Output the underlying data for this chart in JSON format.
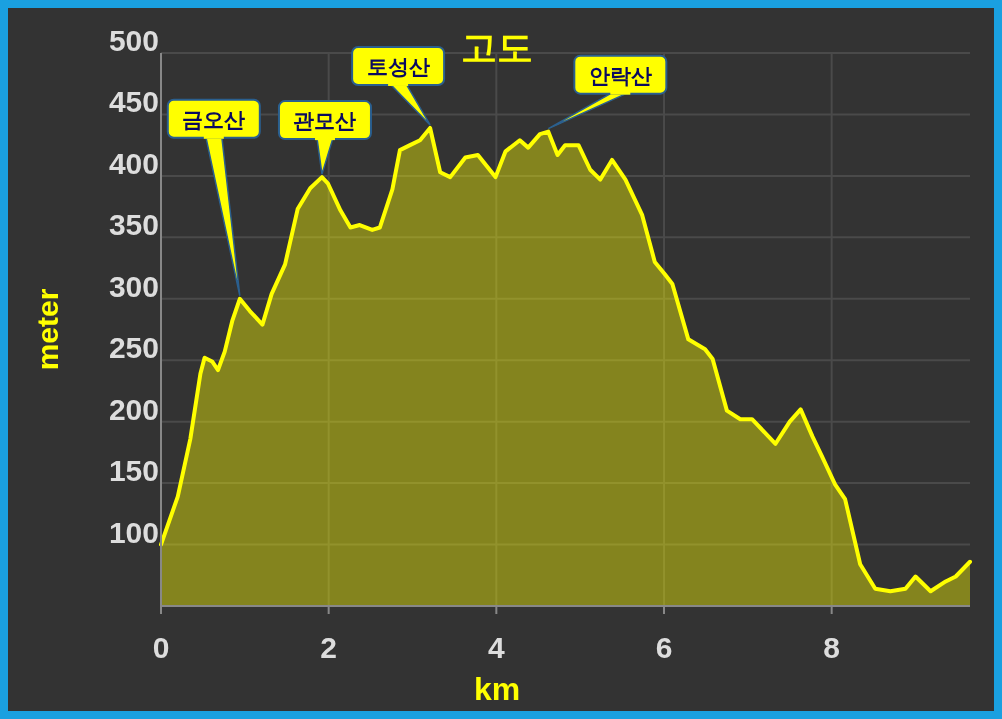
{
  "chart_data": {
    "type": "area",
    "title": "고도",
    "xlabel": "km",
    "ylabel": "meter",
    "xlim": [
      0,
      9.65
    ],
    "xticks": [
      0,
      2,
      4,
      6,
      8
    ],
    "ylim": [
      50,
      500
    ],
    "yticks": [
      100,
      150,
      200,
      250,
      300,
      350,
      400,
      450,
      500
    ],
    "grid": true,
    "series": [
      {
        "color": "#ffff00",
        "x": [
          0,
          0.2,
          0.35,
          0.47,
          0.52,
          0.61,
          0.68,
          0.76,
          0.85,
          0.94,
          1.06,
          1.21,
          1.32,
          1.48,
          1.63,
          1.78,
          1.92,
          1.99,
          2.14,
          2.26,
          2.37,
          2.52,
          2.61,
          2.76,
          2.85,
          2.97,
          3.09,
          3.21,
          3.33,
          3.45,
          3.63,
          3.78,
          3.99,
          4.11,
          4.28,
          4.38,
          4.52,
          4.62,
          4.73,
          4.82,
          4.98,
          5.12,
          5.24,
          5.38,
          5.54,
          5.74,
          5.89,
          6.01,
          6.1,
          6.29,
          6.49,
          6.58,
          6.75,
          6.91,
          7.05,
          7.33,
          7.5,
          7.63,
          7.77,
          7.89,
          8.04,
          8.16,
          8.34,
          8.52,
          8.7,
          8.88,
          9,
          9.18,
          9.36,
          9.48,
          9.65
        ],
        "values": [
          100,
          139,
          186,
          239,
          252,
          249,
          242,
          257,
          282,
          300,
          290,
          279,
          304,
          328,
          373,
          390,
          399,
          394,
          372,
          358,
          360,
          356,
          358,
          389,
          421,
          425,
          429,
          439,
          403,
          399,
          415,
          417,
          399,
          420,
          429,
          423,
          434,
          436,
          417,
          425,
          425,
          405,
          397,
          413,
          397,
          368,
          330,
          320,
          312,
          267,
          259,
          251,
          209,
          202,
          202,
          182,
          200,
          210,
          188,
          171,
          149,
          137,
          84,
          64,
          62,
          64,
          74,
          62,
          70,
          74,
          86
        ]
      }
    ],
    "annotations": [
      {
        "text": "금오산",
        "x": 0.94,
        "y": 300
      },
      {
        "text": "관모산",
        "x": 1.92,
        "y": 399
      },
      {
        "text": "토성산",
        "x": 3.21,
        "y": 439
      },
      {
        "text": "안락산",
        "x": 4.62,
        "y": 436
      }
    ]
  }
}
